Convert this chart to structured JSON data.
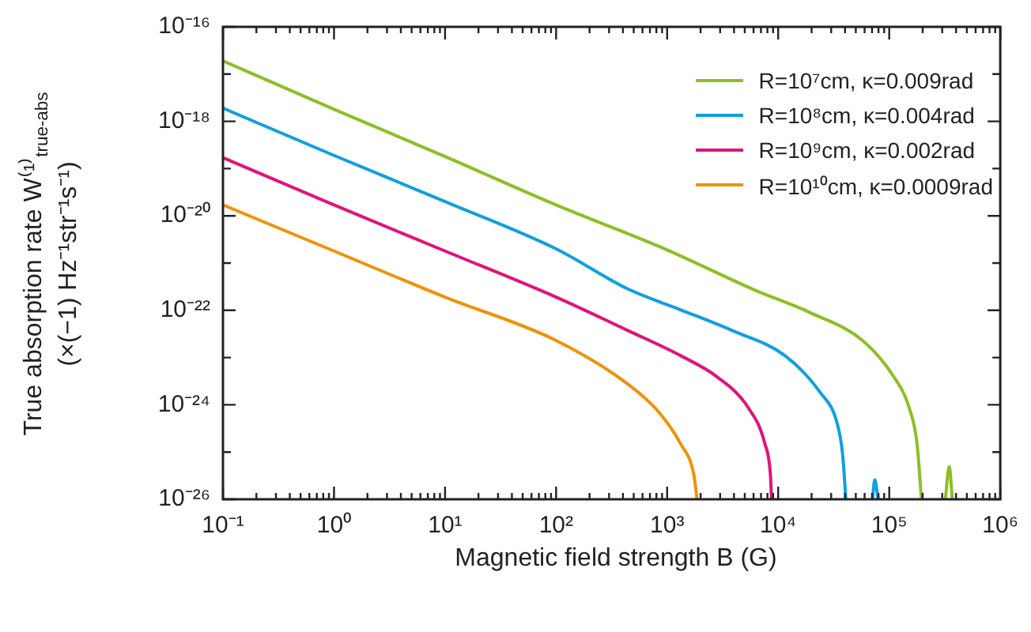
{
  "chart_data": {
    "type": "line",
    "xlabel": "Magnetic field strength B (G)",
    "ylabel": "True absorption rate W⁽¹⁾$_{true-abs}$\n(×(−1) Hz⁻¹str⁻¹s⁻¹)",
    "log": "xy",
    "grid": false,
    "legend": "top right",
    "marker": "none",
    "line_style": "solid",
    "xlim": [
      0.1,
      1000000
    ],
    "ylim": [
      1e-26,
      1e-16
    ],
    "xticks": [
      {
        "value": 0.1,
        "label": "10⁻¹"
      },
      {
        "value": 0.2,
        "label": null
      },
      {
        "value": 0.3,
        "label": null
      },
      {
        "value": 0.4,
        "label": null
      },
      {
        "value": 0.5,
        "label": null
      },
      {
        "value": 0.6,
        "label": null
      },
      {
        "value": 0.7,
        "label": null
      },
      {
        "value": 0.8,
        "label": null
      },
      {
        "value": 0.9,
        "label": null
      },
      {
        "value": 1,
        "label": "10⁰"
      },
      {
        "value": 2,
        "label": null
      },
      {
        "value": 3,
        "label": null
      },
      {
        "value": 4,
        "label": null
      },
      {
        "value": 5,
        "label": null
      },
      {
        "value": 6,
        "label": null
      },
      {
        "value": 7,
        "label": null
      },
      {
        "value": 8,
        "label": null
      },
      {
        "value": 9,
        "label": null
      },
      {
        "value": 10,
        "label": "10¹"
      },
      {
        "value": 20,
        "label": null
      },
      {
        "value": 30,
        "label": null
      },
      {
        "value": 40,
        "label": null
      },
      {
        "value": 50,
        "label": null
      },
      {
        "value": 60,
        "label": null
      },
      {
        "value": 70,
        "label": null
      },
      {
        "value": 80,
        "label": null
      },
      {
        "value": 90,
        "label": null
      },
      {
        "value": 100,
        "label": "10²"
      },
      {
        "value": 200,
        "label": null
      },
      {
        "value": 300,
        "label": null
      },
      {
        "value": 400,
        "label": null
      },
      {
        "value": 500,
        "label": null
      },
      {
        "value": 600,
        "label": null
      },
      {
        "value": 700,
        "label": null
      },
      {
        "value": 800,
        "label": null
      },
      {
        "value": 900,
        "label": null
      },
      {
        "value": 1000,
        "label": "10³"
      },
      {
        "value": 2000,
        "label": null
      },
      {
        "value": 3000,
        "label": null
      },
      {
        "value": 4000,
        "label": null
      },
      {
        "value": 5000,
        "label": null
      },
      {
        "value": 6000,
        "label": null
      },
      {
        "value": 7000,
        "label": null
      },
      {
        "value": 8000,
        "label": null
      },
      {
        "value": 9000,
        "label": null
      },
      {
        "value": 10000,
        "label": "10⁴"
      },
      {
        "value": 20000,
        "label": null
      },
      {
        "value": 30000,
        "label": null
      },
      {
        "value": 40000,
        "label": null
      },
      {
        "value": 50000,
        "label": null
      },
      {
        "value": 60000,
        "label": null
      },
      {
        "value": 70000,
        "label": null
      },
      {
        "value": 80000,
        "label": null
      },
      {
        "value": 90000,
        "label": null
      },
      {
        "value": 100000,
        "label": "10⁵"
      },
      {
        "value": 200000,
        "label": null
      },
      {
        "value": 300000,
        "label": null
      },
      {
        "value": 400000,
        "label": null
      },
      {
        "value": 500000,
        "label": null
      },
      {
        "value": 600000,
        "label": null
      },
      {
        "value": 700000,
        "label": null
      },
      {
        "value": 800000,
        "label": null
      },
      {
        "value": 900000,
        "label": null
      },
      {
        "value": 1000000,
        "label": "10⁶"
      }
    ],
    "yticks": [
      {
        "value": 1e-26,
        "label": "10⁻²⁶"
      },
      {
        "value": 1e-25,
        "label": null
      },
      {
        "value": 1e-24,
        "label": "10⁻²⁴"
      },
      {
        "value": 1e-23,
        "label": null
      },
      {
        "value": 1e-22,
        "label": "10⁻²²"
      },
      {
        "value": 1e-21,
        "label": null
      },
      {
        "value": 1e-20,
        "label": "10⁻²⁰"
      },
      {
        "value": 1e-19,
        "label": null
      },
      {
        "value": 1e-18,
        "label": "10⁻¹⁸"
      },
      {
        "value": 1e-17,
        "label": null
      },
      {
        "value": 1e-16,
        "label": "10⁻¹⁶"
      }
    ],
    "series": [
      {
        "name": "R=10⁷cm, κ=0.009rad",
        "color": "#8cbf26",
        "x": [
          0.1,
          1,
          10,
          100,
          1000,
          5900,
          19500,
          57500,
          110000,
          151000,
          178000,
          195000,
          250000,
          320000,
          347000,
          370000
        ],
        "values": [
          1.9e-17,
          1.8e-18,
          1.8e-19,
          1.7e-20,
          1.9e-21,
          2.8e-22,
          8.9e-23,
          2.3e-23,
          3.9e-24,
          8.7e-25,
          1.5e-25,
          1e-26,
          null,
          1e-26,
          4.9e-26,
          1e-26
        ]
      },
      {
        "name": "R=10⁸cm, κ=0.004rad",
        "color": "#0fa0e0",
        "x": [
          0.1,
          1,
          10,
          100,
          447,
          1290,
          3890,
          11500,
          24000,
          33900,
          38000,
          40700,
          55000,
          70800,
          74100,
          79400
        ],
        "values": [
          1.9e-18,
          1.9e-19,
          2e-20,
          2e-21,
          2.8e-22,
          1.05e-22,
          3.7e-23,
          1.1e-23,
          1.8e-24,
          4.1e-25,
          9.1e-26,
          1e-26,
          null,
          1e-26,
          2.6e-26,
          1e-26
        ]
      },
      {
        "name": "R=10⁹cm, κ=0.002rad",
        "color": "#e0147a",
        "x": [
          0.1,
          1,
          10,
          100,
          447,
          1320,
          2820,
          5370,
          7590,
          8510,
          8710
        ],
        "values": [
          1.7e-19,
          1.7e-20,
          1.8e-21,
          1.9e-22,
          3.7e-23,
          1.1e-23,
          3.9e-24,
          8.7e-25,
          1.5e-25,
          3.3e-26,
          1e-26
        ]
      },
      {
        "name": "R=10¹⁰cm, κ=0.0009rad",
        "color": "#f0920a",
        "x": [
          0.1,
          1,
          10,
          100,
          447,
          851,
          1320,
          1740,
          1860
        ],
        "values": [
          1.7e-20,
          1.8e-21,
          1.9e-22,
          2.3e-23,
          2.7e-24,
          6.8e-25,
          1.5e-25,
          3.3e-26,
          1e-26
        ]
      }
    ]
  }
}
